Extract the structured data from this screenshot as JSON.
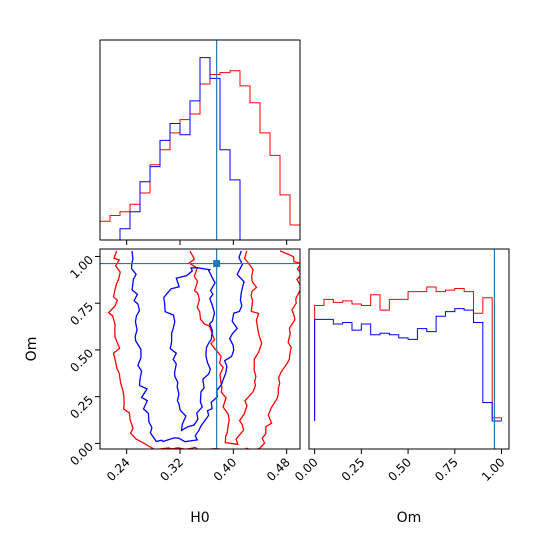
{
  "chart_data": {
    "type": "corner",
    "parameters": [
      "H0",
      "Om"
    ],
    "truths": {
      "H0": 0.375,
      "Om": 0.962
    },
    "colors": {
      "series_a": "#ff0000",
      "series_b": "#0000ff",
      "truth": "#1f77b4"
    },
    "axes": {
      "H0": {
        "label": "H0",
        "range": [
          0.2,
          0.5
        ],
        "ticks": [
          0.24,
          0.32,
          0.4,
          0.48
        ],
        "tick_labels": [
          "0.24",
          "0.32",
          "0.40",
          "0.48"
        ]
      },
      "Om": {
        "label": "Om",
        "range": [
          -0.03,
          1.04
        ],
        "ticks": [
          0.0,
          0.25,
          0.5,
          0.75,
          1.0
        ],
        "tick_labels": [
          "0.00",
          "0.25",
          "0.50",
          "0.75",
          "1.00"
        ]
      }
    },
    "hist_H0": {
      "bin_edges": [
        0.2,
        0.215,
        0.23,
        0.245,
        0.26,
        0.275,
        0.29,
        0.305,
        0.32,
        0.335,
        0.35,
        0.365,
        0.38,
        0.395,
        0.41,
        0.425,
        0.44,
        0.455,
        0.47,
        0.485,
        0.5
      ],
      "series_a": [
        0.1,
        0.13,
        0.15,
        0.19,
        0.25,
        0.4,
        0.48,
        0.57,
        0.64,
        0.67,
        0.83,
        0.88,
        0.89,
        0.9,
        0.82,
        0.73,
        0.57,
        0.45,
        0.24,
        0.08
      ],
      "series_b": [
        0.0,
        0.0,
        0.06,
        0.15,
        0.31,
        0.39,
        0.53,
        0.62,
        0.56,
        0.74,
        0.97,
        0.86,
        0.48,
        0.32,
        0.0,
        0.0,
        0.0,
        0.0,
        0.0,
        0.0
      ]
    },
    "hist_Om": {
      "bin_edges": [
        0.0,
        0.05,
        0.1,
        0.15,
        0.2,
        0.25,
        0.3,
        0.35,
        0.4,
        0.45,
        0.5,
        0.55,
        0.6,
        0.65,
        0.7,
        0.75,
        0.8,
        0.85,
        0.9,
        0.95,
        1.0
      ],
      "series_a": [
        0.75,
        0.79,
        0.77,
        0.78,
        0.76,
        0.75,
        0.82,
        0.72,
        0.79,
        0.79,
        0.84,
        0.84,
        0.87,
        0.84,
        0.85,
        0.86,
        0.84,
        0.7,
        0.8,
        0.02
      ],
      "series_b": [
        0.66,
        0.66,
        0.63,
        0.64,
        0.59,
        0.63,
        0.56,
        0.57,
        0.56,
        0.54,
        0.53,
        0.6,
        0.58,
        0.68,
        0.71,
        0.73,
        0.72,
        0.64,
        0.12,
        0.0
      ]
    },
    "contours": {
      "series_a": [
        {
          "role": "inner",
          "points": [
            [
              0.335,
              1.03
            ],
            [
              0.345,
              0.86
            ],
            [
              0.352,
              0.7
            ],
            [
              0.365,
              0.62
            ],
            [
              0.38,
              0.4
            ],
            [
              0.388,
              0.2
            ],
            [
              0.392,
              0.0
            ],
            [
              0.405,
              0.0
            ],
            [
              0.42,
              0.2
            ],
            [
              0.435,
              0.4
            ],
            [
              0.442,
              0.62
            ],
            [
              0.428,
              0.75
            ],
            [
              0.43,
              0.9
            ],
            [
              0.42,
              1.03
            ]
          ]
        },
        {
          "role": "outer",
          "points": [
            [
              0.225,
              1.03
            ],
            [
              0.228,
              0.85
            ],
            [
              0.218,
              0.7
            ],
            [
              0.225,
              0.55
            ],
            [
              0.228,
              0.38
            ],
            [
              0.238,
              0.22
            ],
            [
              0.25,
              0.05
            ],
            [
              0.28,
              -0.03
            ],
            [
              0.44,
              -0.03
            ],
            [
              0.462,
              0.2
            ],
            [
              0.48,
              0.45
            ],
            [
              0.495,
              0.75
            ],
            [
              0.5,
              0.96
            ],
            [
              0.47,
              1.03
            ]
          ]
        }
      ],
      "series_b": [
        {
          "role": "inner",
          "points": [
            [
              0.3,
              0.8
            ],
            [
              0.31,
              0.55
            ],
            [
              0.318,
              0.3
            ],
            [
              0.325,
              0.08
            ],
            [
              0.345,
              0.1
            ],
            [
              0.36,
              0.4
            ],
            [
              0.37,
              0.7
            ],
            [
              0.368,
              0.92
            ],
            [
              0.34,
              0.95
            ],
            [
              0.3,
              0.8
            ]
          ]
        },
        {
          "role": "outer",
          "points": [
            [
              0.248,
              1.03
            ],
            [
              0.252,
              0.8
            ],
            [
              0.258,
              0.45
            ],
            [
              0.27,
              0.15
            ],
            [
              0.282,
              0.02
            ],
            [
              0.345,
              0.02
            ],
            [
              0.39,
              0.4
            ],
            [
              0.41,
              0.78
            ],
            [
              0.412,
              1.03
            ]
          ]
        }
      ]
    }
  }
}
